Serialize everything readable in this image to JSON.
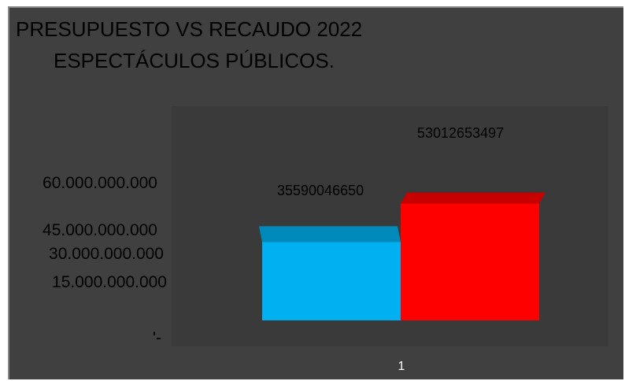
{
  "chart_data": {
    "type": "bar",
    "title": "PRESUPUESTO VS RECAUDO 2022",
    "subtitle": "ESPECTÁCULOS PÚBLICOS.",
    "categories": [
      "1"
    ],
    "series": [
      {
        "values": [
          35590046650
        ],
        "color": "#00B0F0",
        "value_label": "35590046650"
      },
      {
        "values": [
          53012653497
        ],
        "color": "#FF0000",
        "value_label": "53012653497"
      }
    ],
    "ylim": [
      0,
      60000000000
    ],
    "y_ticks": [
      {
        "value": 60000000000,
        "label": "60.000.000.000"
      },
      {
        "value": 45000000000,
        "label": "45.000.000.000"
      },
      {
        "value": 30000000000,
        "label": "30.000.000.000"
      },
      {
        "value": 15000000000,
        "label": "15.000.000.000"
      },
      {
        "value": 0,
        "label": "'-"
      }
    ],
    "grid": false,
    "legend": "none",
    "style": "3d-column",
    "colors": {
      "background": "#404040",
      "plot_area": "#3A3A3A",
      "text": "#000000",
      "category_text": "#FFFFFF"
    }
  }
}
